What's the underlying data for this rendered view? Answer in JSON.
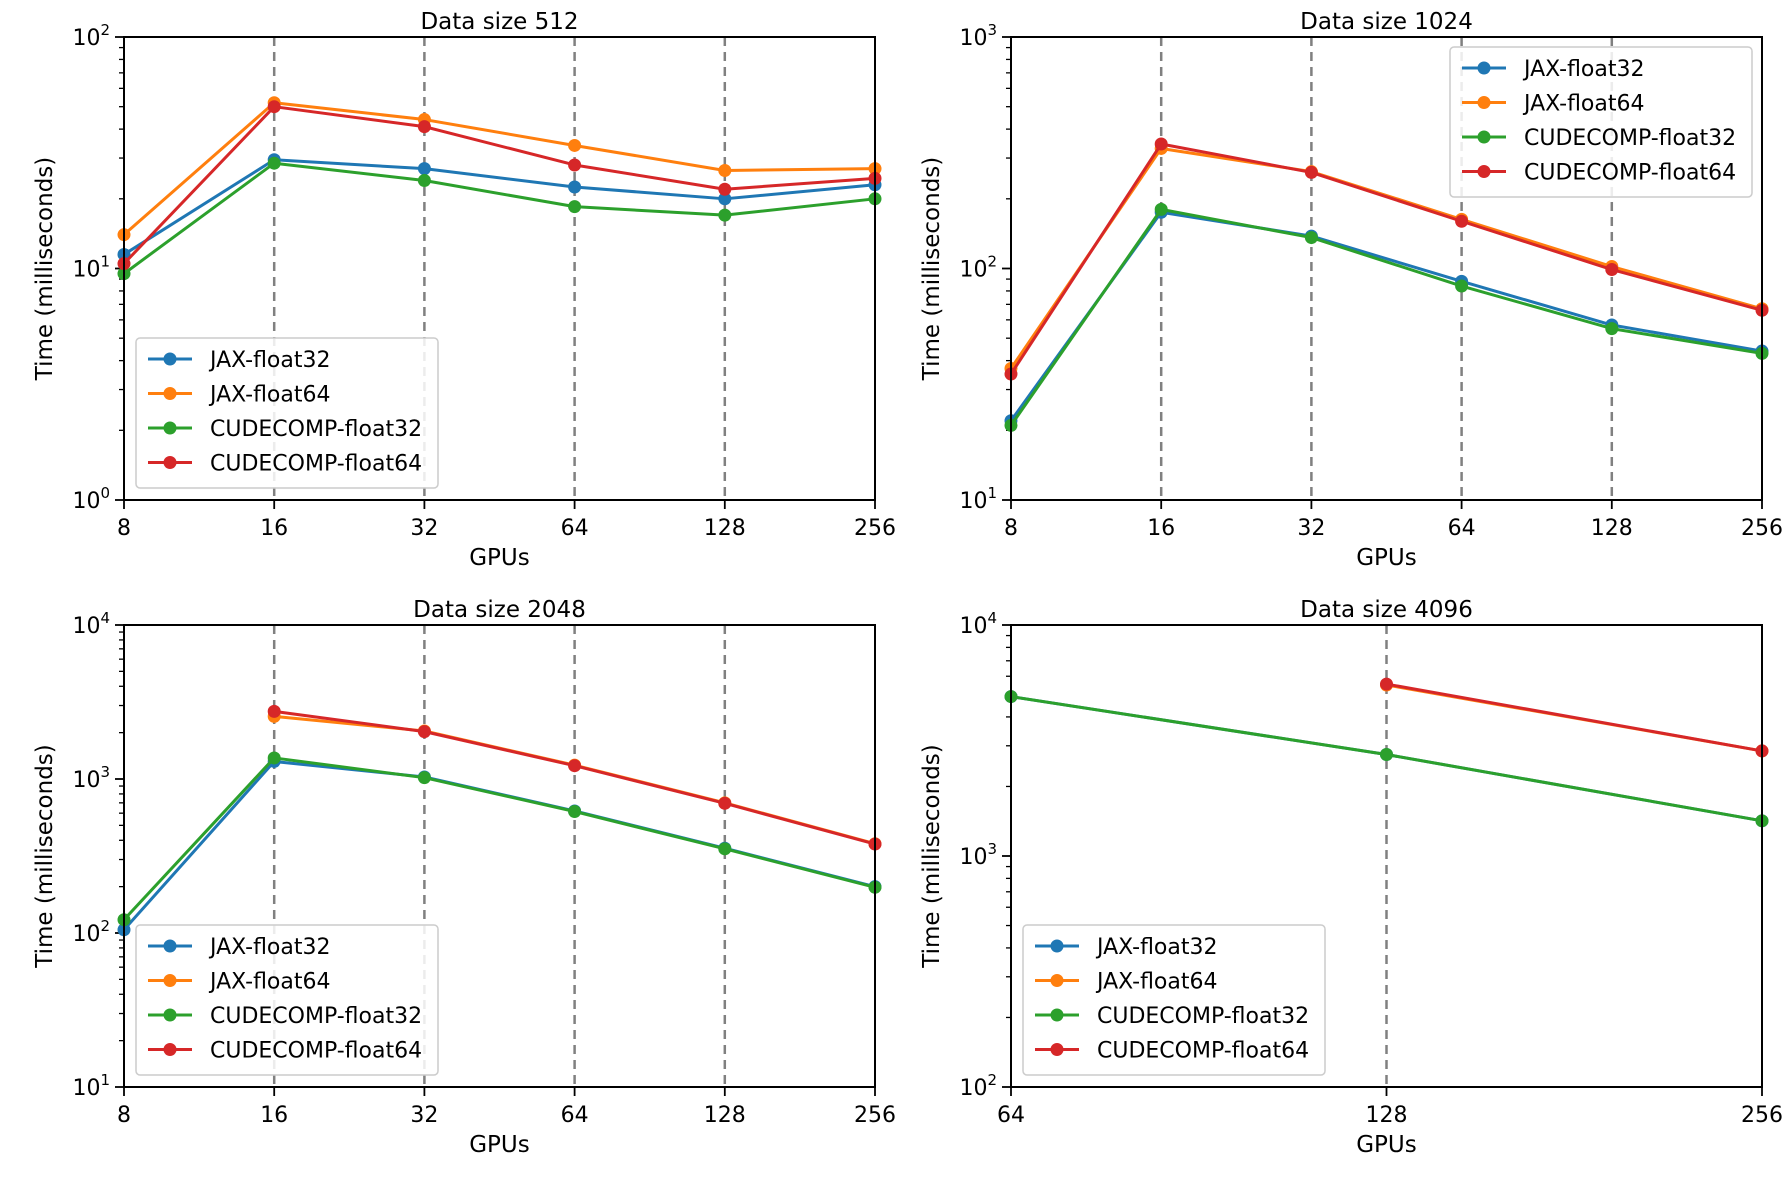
{
  "chart_data": [
    {
      "type": "line",
      "title": "Data size 512",
      "xlabel": "GPUs",
      "ylabel": "Time (milliseconds)",
      "x": [
        8,
        16,
        32,
        64,
        128,
        256
      ],
      "x_tick_labels": [
        "8",
        "16",
        "32",
        "64",
        "128",
        "256"
      ],
      "yscale": "log",
      "ylim_exp": [
        0,
        2
      ],
      "y_tick_base": "10",
      "y_tick_exps": [
        "0",
        "1",
        "2"
      ],
      "vlines": [
        16,
        32,
        64,
        128
      ],
      "legend_loc": "lower-left",
      "series": [
        {
          "name": "JAX-float32",
          "color": "#1f77b4",
          "values": [
            11.5,
            29.5,
            27,
            22.5,
            20,
            23
          ]
        },
        {
          "name": "JAX-float64",
          "color": "#ff7f0e",
          "values": [
            14,
            52,
            44,
            34,
            26.5,
            27
          ]
        },
        {
          "name": "CUDECOMP-float32",
          "color": "#2ca02c",
          "values": [
            9.5,
            28.5,
            24,
            18.5,
            17,
            20
          ]
        },
        {
          "name": "CUDECOMP-float64",
          "color": "#d62728",
          "values": [
            10.5,
            50,
            41,
            28,
            22,
            24.5
          ]
        }
      ]
    },
    {
      "type": "line",
      "title": "Data size 1024",
      "xlabel": "GPUs",
      "ylabel": "Time (milliseconds)",
      "x": [
        8,
        16,
        32,
        64,
        128,
        256
      ],
      "x_tick_labels": [
        "8",
        "16",
        "32",
        "64",
        "128",
        "256"
      ],
      "yscale": "log",
      "ylim_exp": [
        1,
        3
      ],
      "y_tick_base": "10",
      "y_tick_exps": [
        "1",
        "2",
        "3"
      ],
      "vlines": [
        16,
        32,
        64,
        128
      ],
      "legend_loc": "upper-right",
      "series": [
        {
          "name": "JAX-float32",
          "color": "#1f77b4",
          "values": [
            22,
            175,
            138,
            88,
            57,
            44
          ]
        },
        {
          "name": "JAX-float64",
          "color": "#ff7f0e",
          "values": [
            37,
            330,
            262,
            163,
            102,
            67
          ]
        },
        {
          "name": "CUDECOMP-float32",
          "color": "#2ca02c",
          "values": [
            21,
            180,
            136,
            84,
            55,
            43
          ]
        },
        {
          "name": "CUDECOMP-float64",
          "color": "#d62728",
          "values": [
            35,
            345,
            260,
            160,
            99,
            66
          ]
        }
      ]
    },
    {
      "type": "line",
      "title": "Data size 2048",
      "xlabel": "GPUs",
      "ylabel": "Time (milliseconds)",
      "x": [
        8,
        16,
        32,
        64,
        128,
        256
      ],
      "x_tick_labels": [
        "8",
        "16",
        "32",
        "64",
        "128",
        "256"
      ],
      "yscale": "log",
      "ylim_exp": [
        1,
        4
      ],
      "y_tick_base": "10",
      "y_tick_exps": [
        "1",
        "2",
        "3",
        "4"
      ],
      "vlines": [
        16,
        32,
        64,
        128
      ],
      "legend_loc": "lower-left",
      "series": [
        {
          "name": "JAX-float32",
          "color": "#1f77b4",
          "values": [
            105,
            1300,
            1030,
            620,
            355,
            200
          ]
        },
        {
          "name": "JAX-float64",
          "color": "#ff7f0e",
          "values": [
            null,
            2550,
            2050,
            1230,
            700,
            380
          ]
        },
        {
          "name": "CUDECOMP-float32",
          "color": "#2ca02c",
          "values": [
            122,
            1370,
            1020,
            615,
            352,
            198
          ]
        },
        {
          "name": "CUDECOMP-float64",
          "color": "#d62728",
          "values": [
            null,
            2750,
            2030,
            1220,
            695,
            378
          ]
        }
      ]
    },
    {
      "type": "line",
      "title": "Data size 4096",
      "xlabel": "GPUs",
      "ylabel": "Time (milliseconds)",
      "x": [
        64,
        128,
        256
      ],
      "x_tick_labels": [
        "64",
        "128",
        "256"
      ],
      "yscale": "log",
      "ylim_exp": [
        2,
        4
      ],
      "y_tick_base": "10",
      "y_tick_exps": [
        "2",
        "3",
        "4"
      ],
      "vlines": [
        128
      ],
      "legend_loc": "lower-left",
      "series": [
        {
          "name": "JAX-float32",
          "color": "#1f77b4",
          "values": [
            4900,
            2750,
            1420
          ]
        },
        {
          "name": "JAX-float64",
          "color": "#ff7f0e",
          "values": [
            null,
            5500,
            2850
          ]
        },
        {
          "name": "CUDECOMP-float32",
          "color": "#2ca02c",
          "values": [
            4900,
            2750,
            1420
          ]
        },
        {
          "name": "CUDECOMP-float64",
          "color": "#d62728",
          "values": [
            null,
            5550,
            2850
          ]
        }
      ]
    }
  ]
}
